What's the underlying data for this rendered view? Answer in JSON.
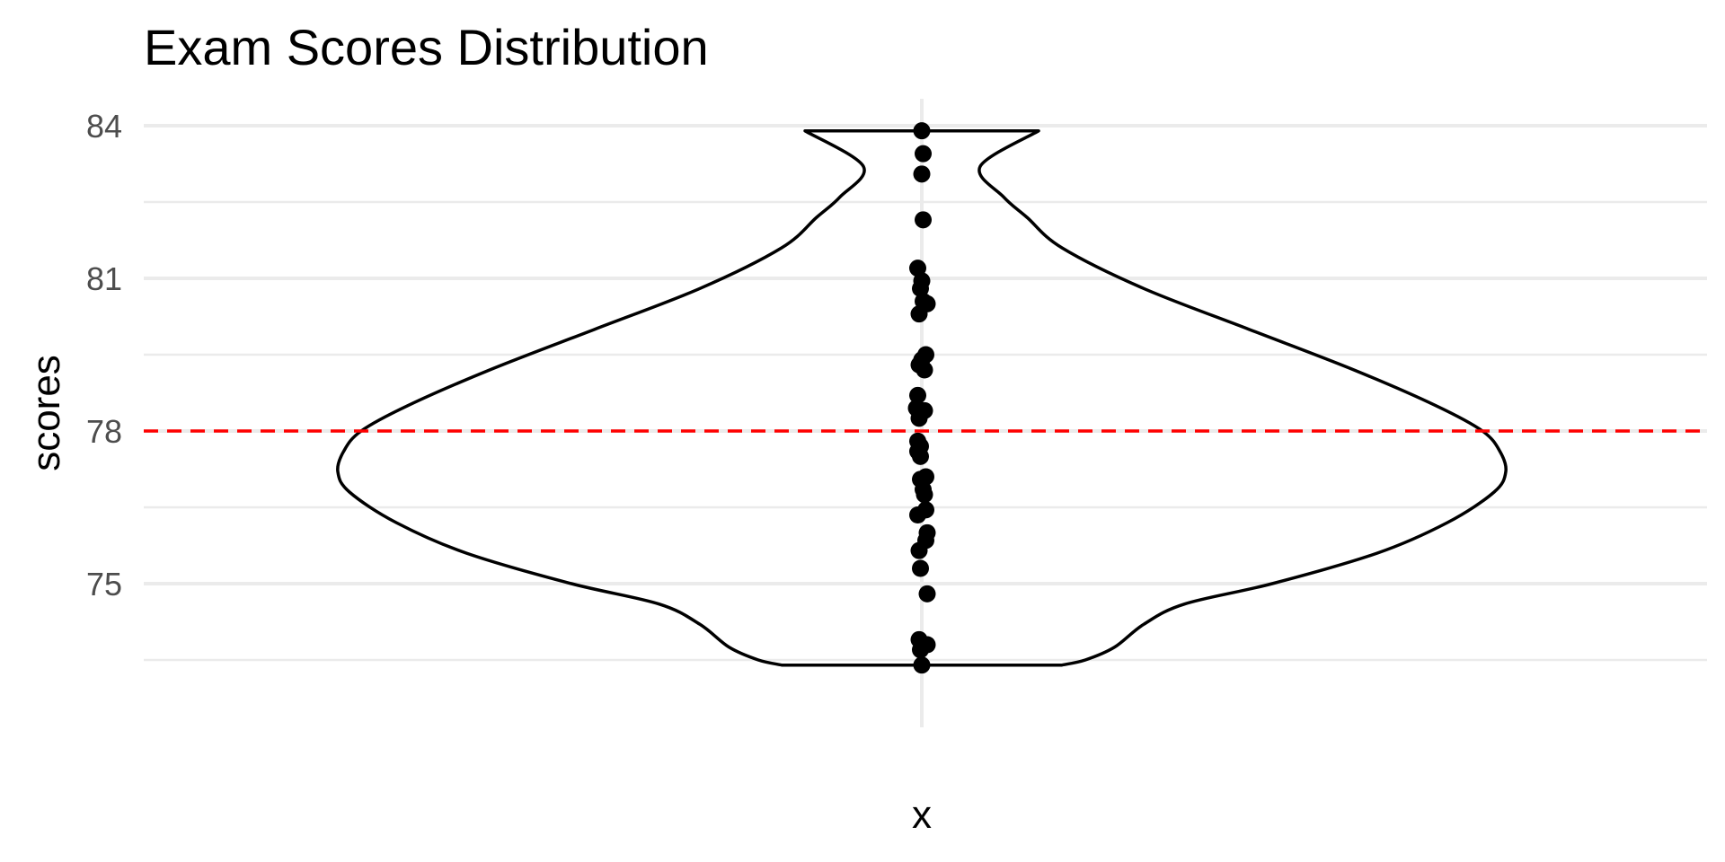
{
  "chart_data": {
    "type": "violin",
    "title": "Exam Scores Distribution",
    "xlabel": "x",
    "ylabel": "scores",
    "ylim": [
      72.2,
      84.6
    ],
    "yticks": [
      75,
      78,
      81,
      84
    ],
    "grid": true,
    "reference_line": {
      "y": 78,
      "style": "dashed",
      "color": "#ff0000"
    },
    "violin": {
      "min": 73.4,
      "max": 83.9,
      "profile": [
        [
          73.4,
          0.24
        ],
        [
          73.5,
          0.28
        ],
        [
          73.75,
          0.33
        ],
        [
          74.2,
          0.38
        ],
        [
          74.6,
          0.45
        ],
        [
          75.0,
          0.6
        ],
        [
          75.6,
          0.78
        ],
        [
          76.2,
          0.9
        ],
        [
          76.8,
          0.98
        ],
        [
          77.2,
          1.0
        ],
        [
          77.6,
          0.99
        ],
        [
          78.0,
          0.96
        ],
        [
          78.5,
          0.88
        ],
        [
          79.2,
          0.74
        ],
        [
          80.0,
          0.56
        ],
        [
          80.8,
          0.38
        ],
        [
          81.6,
          0.24
        ],
        [
          82.2,
          0.18
        ],
        [
          82.6,
          0.14
        ],
        [
          83.2,
          0.1
        ],
        [
          83.9,
          0.2
        ]
      ]
    },
    "points": [
      {
        "x": 0.0,
        "y": 83.9
      },
      {
        "x": 0.01,
        "y": 83.45
      },
      {
        "x": 0.0,
        "y": 83.05
      },
      {
        "x": 0.01,
        "y": 82.15
      },
      {
        "x": -0.03,
        "y": 81.2
      },
      {
        "x": 0.0,
        "y": 80.95
      },
      {
        "x": -0.01,
        "y": 80.8
      },
      {
        "x": 0.01,
        "y": 80.55
      },
      {
        "x": 0.04,
        "y": 80.5
      },
      {
        "x": -0.02,
        "y": 80.3
      },
      {
        "x": 0.03,
        "y": 79.5
      },
      {
        "x": 0.0,
        "y": 79.4
      },
      {
        "x": -0.02,
        "y": 79.3
      },
      {
        "x": 0.02,
        "y": 79.2
      },
      {
        "x": -0.03,
        "y": 78.7
      },
      {
        "x": -0.04,
        "y": 78.45
      },
      {
        "x": 0.02,
        "y": 78.4
      },
      {
        "x": -0.02,
        "y": 78.25
      },
      {
        "x": -0.03,
        "y": 77.8
      },
      {
        "x": -0.01,
        "y": 77.7
      },
      {
        "x": -0.03,
        "y": 77.6
      },
      {
        "x": -0.01,
        "y": 77.5
      },
      {
        "x": 0.03,
        "y": 77.1
      },
      {
        "x": -0.01,
        "y": 77.05
      },
      {
        "x": 0.01,
        "y": 76.85
      },
      {
        "x": 0.02,
        "y": 76.75
      },
      {
        "x": 0.03,
        "y": 76.45
      },
      {
        "x": -0.03,
        "y": 76.35
      },
      {
        "x": 0.04,
        "y": 76.0
      },
      {
        "x": 0.03,
        "y": 75.85
      },
      {
        "x": -0.02,
        "y": 75.65
      },
      {
        "x": -0.01,
        "y": 75.3
      },
      {
        "x": 0.04,
        "y": 74.8
      },
      {
        "x": -0.02,
        "y": 73.9
      },
      {
        "x": 0.04,
        "y": 73.8
      },
      {
        "x": -0.01,
        "y": 73.7
      },
      {
        "x": 0.0,
        "y": 73.4
      }
    ]
  }
}
